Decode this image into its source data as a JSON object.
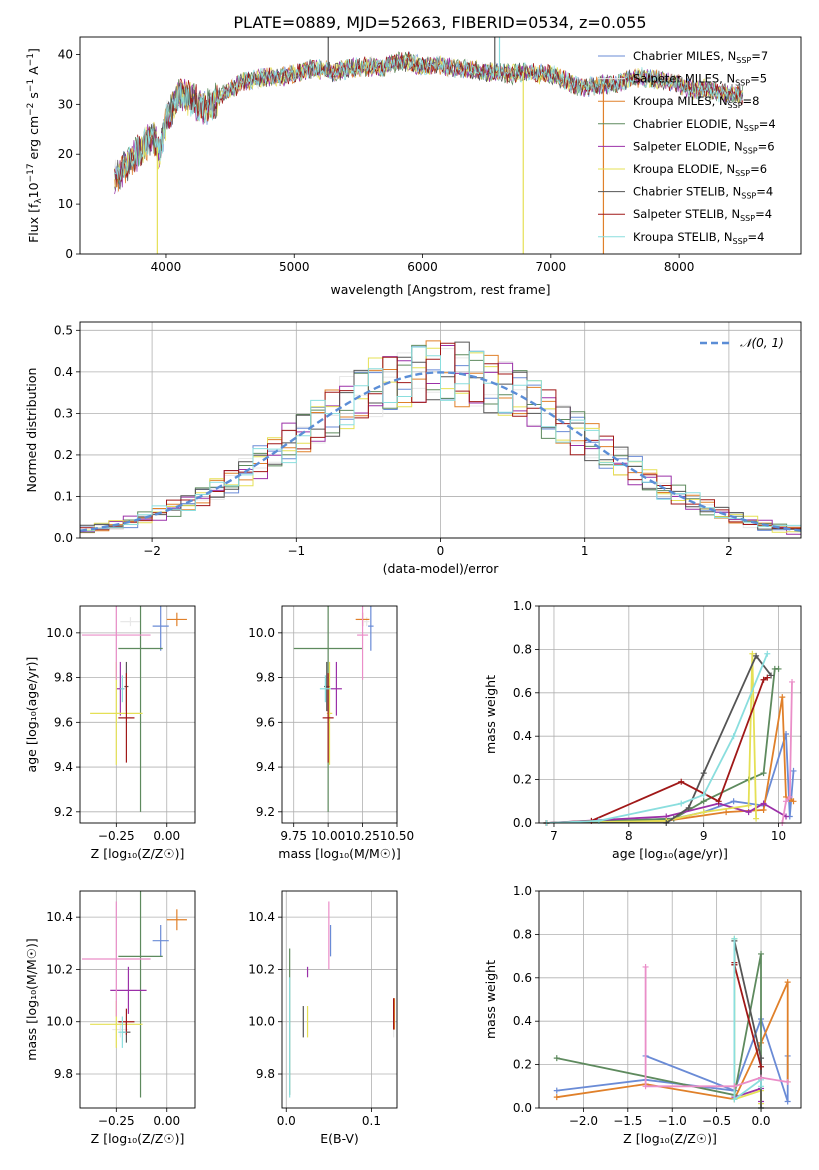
{
  "figure_title": "PLATE=0889, MJD=52663, FIBERID=0534, z=0.055",
  "series_styles": [
    {
      "name_base": "Chabrier MILES",
      "nssp": "7",
      "color": "#6a8bd6"
    },
    {
      "name_base": "Salpeter MILES",
      "nssp": "5",
      "color": "#e8e8e8"
    },
    {
      "name_base": "Kroupa MILES",
      "nssp": "8",
      "color": "#e0802a"
    },
    {
      "name_base": "Chabrier ELODIE",
      "nssp": "4",
      "color": "#5e8a5e"
    },
    {
      "name_base": "Salpeter ELODIE",
      "nssp": "6",
      "color": "#9b30a8"
    },
    {
      "name_base": "Kroupa ELODIE",
      "nssp": "6",
      "color": "#e5e055"
    },
    {
      "name_base": "Chabrier STELIB",
      "nssp": "4",
      "color": "#555555"
    },
    {
      "name_base": "Salpeter STELIB",
      "nssp": "4",
      "color": "#a01818"
    },
    {
      "name_base": "Kroupa STELIB",
      "nssp": "4",
      "color": "#8adede"
    }
  ],
  "chart_data": [
    {
      "id": "spectrum",
      "type": "line",
      "xlabel": "wavelength [Angstrom, rest frame]",
      "ylabel": "Flux [f_λ10^-17 erg cm^-2 s^-1 A^-1]",
      "xlim": [
        3330,
        8950
      ],
      "ylim": [
        0,
        43.5
      ],
      "xticks": [
        4000,
        5000,
        6000,
        7000,
        8000
      ],
      "yticks": [
        0,
        10,
        20,
        30,
        40
      ],
      "grid": false,
      "legend": "top-right",
      "continuum": {
        "x": [
          3600,
          3700,
          3800,
          3900,
          3950,
          4000,
          4100,
          4200,
          4300,
          4400,
          4500,
          4600,
          4700,
          4800,
          4900,
          5000,
          5100,
          5200,
          5300,
          5400,
          5500,
          5600,
          5700,
          5800,
          5900,
          6000,
          6100,
          6200,
          6300,
          6400,
          6500,
          6600,
          6700,
          6800,
          6900,
          7000,
          7100,
          7200,
          7300,
          7400,
          7500,
          7600,
          7700,
          7800,
          7900,
          8000,
          8100,
          8200,
          8300,
          8400,
          8500
        ],
        "y": [
          15,
          18,
          21,
          24,
          20,
          27,
          32,
          31,
          29,
          31,
          33,
          34.5,
          35,
          35.5,
          35.5,
          36,
          37,
          37,
          36.5,
          37,
          37.5,
          37.5,
          37.5,
          38.5,
          38.5,
          37.5,
          38,
          37.5,
          37,
          37,
          36.5,
          36.5,
          36,
          36.5,
          36,
          36,
          35,
          33.5,
          33.5,
          34,
          34,
          35,
          35.5,
          35,
          34.5,
          34,
          33,
          33,
          32.5,
          32,
          32
        ]
      },
      "spikes": [
        {
          "x": 3933,
          "y": 0,
          "color": "#e5e055"
        },
        {
          "x": 6785,
          "y": 0,
          "color": "#e5e055"
        },
        {
          "x": 7410,
          "y": 0,
          "color": "#e0802a"
        },
        {
          "x": 5265,
          "y": 45,
          "color": "#555555"
        },
        {
          "x": 6563,
          "y": 45,
          "color": "#555555"
        },
        {
          "x": 6600,
          "y": 45,
          "color": "#8adede"
        }
      ]
    },
    {
      "id": "residuals",
      "type": "area",
      "xlabel": "(data-model)/error",
      "ylabel": "Normed distribution",
      "xlim": [
        -2.5,
        2.5
      ],
      "ylim": [
        0,
        0.52
      ],
      "xticks": [
        -2,
        -1,
        0,
        1,
        2
      ],
      "yticks": [
        0.0,
        0.1,
        0.2,
        0.3,
        0.4,
        0.5
      ],
      "grid": true,
      "legend": "top-right",
      "gaussian_label": "𝒩(0, 1)",
      "bin_width": 0.1,
      "bin_start": -2.5
    },
    {
      "id": "age_vs_Z",
      "type": "scatter",
      "xlabel": "Z [log₁₀(Z/Z☉)]",
      "ylabel": "age  [log₁₀(age/yr)]",
      "xlim": [
        -0.43,
        0.14
      ],
      "ylim": [
        9.15,
        10.12
      ],
      "xticks": [
        -0.25,
        0.0
      ],
      "yticks": [
        9.2,
        9.4,
        9.6,
        9.8,
        10.0
      ],
      "grid": true,
      "points": [
        {
          "x": -0.03,
          "y": 10.03,
          "xe": 0.04,
          "ye": 0.11
        },
        {
          "x": -0.18,
          "y": 10.05,
          "xe": 0.05,
          "ye": 0.02
        },
        {
          "x": 0.05,
          "y": 10.06,
          "xe": 0.05,
          "ye": 0.03
        },
        {
          "x": -0.13,
          "y": 9.93,
          "xe": 0.11,
          "ye": 0.73
        },
        {
          "x": -0.23,
          "y": 9.75,
          "xe": 0.02,
          "ye": 0.12
        },
        {
          "x": -0.25,
          "y": 9.64,
          "xe": 0.13,
          "ye": 0.23
        },
        {
          "x": -0.2,
          "y": 9.76,
          "xe": 0.01,
          "ye": 0.11
        },
        {
          "x": -0.2,
          "y": 9.62,
          "xe": 0.04,
          "ye": 0.2
        },
        {
          "x": -0.22,
          "y": 9.75,
          "xe": 0.01,
          "ye": 0.06
        },
        {
          "x": -0.25,
          "y": 9.99,
          "xe": 0.17,
          "ye": 0.2
        }
      ]
    },
    {
      "id": "age_vs_mass",
      "type": "scatter",
      "xlabel": "mass [log₁₀(M/M☉)]",
      "ylabel": "",
      "xlim": [
        9.665,
        10.5
      ],
      "ylim": [
        9.15,
        10.12
      ],
      "xticks": [
        9.75,
        10.0,
        10.25,
        10.5
      ],
      "yticks": [
        9.2,
        9.4,
        9.6,
        9.8,
        10.0
      ],
      "grid": true,
      "points": [
        {
          "x": 10.31,
          "y": 10.03,
          "xe": 0.02,
          "ye": 0.11
        },
        {
          "x": 10.28,
          "y": 10.05,
          "xe": 0.02,
          "ye": 0.02
        },
        {
          "x": 10.25,
          "y": 10.06,
          "xe": 0.05,
          "ye": 0.03
        },
        {
          "x": 10.0,
          "y": 9.93,
          "xe": 0.25,
          "ye": 0.73
        },
        {
          "x": 10.06,
          "y": 9.75,
          "xe": 0.04,
          "ye": 0.12
        },
        {
          "x": 10.01,
          "y": 9.64,
          "xe": 0.02,
          "ye": 0.23
        },
        {
          "x": 9.99,
          "y": 9.76,
          "xe": 0.02,
          "ye": 0.11
        },
        {
          "x": 10.0,
          "y": 9.62,
          "xe": 0.04,
          "ye": 0.2
        },
        {
          "x": 9.98,
          "y": 9.75,
          "xe": 0.04,
          "ye": 0.06
        },
        {
          "x": 10.25,
          "y": 9.99,
          "xe": 0.04,
          "ye": 0.2
        }
      ]
    },
    {
      "id": "weight_vs_age",
      "type": "line",
      "xlabel": "age  [log₁₀(age/yr)]",
      "ylabel": "mass weight",
      "xlim": [
        6.8,
        10.3
      ],
      "ylim": [
        0,
        1
      ],
      "xticks": [
        7,
        8,
        9,
        10
      ],
      "yticks": [
        0.0,
        0.2,
        0.4,
        0.6,
        0.8,
        1.0
      ],
      "grid": true,
      "series": [
        {
          "color": "#6a8bd6",
          "x": [
            6.9,
            8.6,
            9.0,
            9.4,
            9.8,
            10.1,
            10.15,
            10.2
          ],
          "y": [
            0.0,
            0.02,
            0.05,
            0.1,
            0.08,
            0.41,
            0.03,
            0.24
          ]
        },
        {
          "color": "#e0802a",
          "x": [
            6.9,
            8.5,
            9.3,
            9.8,
            10.05,
            10.1,
            10.15,
            10.2
          ],
          "y": [
            0.0,
            0.01,
            0.05,
            0.06,
            0.58,
            0.12,
            0.11,
            0.1
          ]
        },
        {
          "color": "#5e8a5e",
          "x": [
            6.9,
            8.6,
            9.0,
            9.6,
            9.8,
            9.95,
            10.0
          ],
          "y": [
            0.0,
            0.02,
            0.1,
            0.2,
            0.23,
            0.71,
            0.71
          ]
        },
        {
          "color": "#9b30a8",
          "x": [
            6.9,
            8.5,
            9.2,
            9.6,
            9.8,
            10.1
          ],
          "y": [
            0.0,
            0.03,
            0.09,
            0.05,
            0.09,
            0.03
          ]
        },
        {
          "color": "#e5e055",
          "x": [
            6.9,
            8.5,
            9.0,
            9.6,
            9.65,
            9.7
          ],
          "y": [
            0.0,
            0.01,
            0.05,
            0.08,
            0.78,
            0.02
          ]
        },
        {
          "color": "#555555",
          "x": [
            6.9,
            8.5,
            8.8,
            9.0,
            9.7,
            9.9
          ],
          "y": [
            0.0,
            0.0,
            0.07,
            0.23,
            0.77,
            0.68
          ]
        },
        {
          "color": "#a01818",
          "x": [
            6.9,
            7.5,
            8.7,
            9.2,
            9.8,
            9.85
          ],
          "y": [
            0.0,
            0.01,
            0.19,
            0.1,
            0.66,
            0.67
          ]
        },
        {
          "color": "#8adede",
          "x": [
            6.9,
            7.6,
            8.7,
            9.0,
            9.4,
            9.85
          ],
          "y": [
            0.0,
            0.01,
            0.09,
            0.13,
            0.4,
            0.78
          ]
        },
        {
          "color": "#ea8ec8",
          "x": [
            10.05,
            10.1,
            10.15,
            10.18
          ],
          "y": [
            0.0,
            0.1,
            0.12,
            0.65
          ]
        }
      ]
    },
    {
      "id": "mass_vs_Z",
      "type": "scatter",
      "xlabel": "Z [log₁₀(Z/Z☉)]",
      "ylabel": "mass [log₁₀(M/M☉)]",
      "xlim": [
        -0.43,
        0.14
      ],
      "ylim": [
        9.67,
        10.5
      ],
      "xticks": [
        -0.25,
        0.0
      ],
      "yticks": [
        9.8,
        10.0,
        10.2,
        10.4
      ],
      "grid": true,
      "points": [
        {
          "x": -0.03,
          "y": 10.31,
          "xe": 0.04,
          "ye": 0.06
        },
        {
          "x": -0.23,
          "y": 9.97,
          "xe": 0.04,
          "ye": 0.03
        },
        {
          "x": 0.05,
          "y": 10.39,
          "xe": 0.05,
          "ye": 0.04
        },
        {
          "x": -0.13,
          "y": 10.25,
          "xe": 0.11,
          "ye": 0.54
        },
        {
          "x": -0.19,
          "y": 10.12,
          "xe": 0.09,
          "ye": 0.09
        },
        {
          "x": -0.25,
          "y": 9.99,
          "xe": 0.13,
          "ye": 0.09
        },
        {
          "x": -0.2,
          "y": 9.96,
          "xe": 0.02,
          "ye": 0.04
        },
        {
          "x": -0.2,
          "y": 10.0,
          "xe": 0.04,
          "ye": 0.05
        },
        {
          "x": -0.22,
          "y": 9.96,
          "xe": 0.02,
          "ye": 0.06
        },
        {
          "x": -0.25,
          "y": 10.24,
          "xe": 0.17,
          "ye": 0.22
        }
      ]
    },
    {
      "id": "mass_vs_ebv",
      "type": "scatter",
      "xlabel": "E(B-V)",
      "ylabel": "",
      "xlim": [
        -0.005,
        0.13
      ],
      "ylim": [
        9.67,
        10.5
      ],
      "xticks": [
        0.0,
        0.1
      ],
      "yticks": [
        9.8,
        10.0,
        10.2,
        10.4
      ],
      "grid": true,
      "points": [
        {
          "x": 0.052,
          "y": 10.31,
          "xe": 0,
          "ye": 0.06
        },
        {
          "x": 0.126,
          "y": 9.97,
          "xe": 0,
          "ye": 0.03
        },
        {
          "x": 0.127,
          "y": 10.03,
          "xe": 0,
          "ye": 0.06
        },
        {
          "x": 0.004,
          "y": 10.0,
          "xe": 0,
          "ye": 0.28
        },
        {
          "x": 0.025,
          "y": 10.19,
          "xe": 0,
          "ye": 0.02
        },
        {
          "x": 0.025,
          "y": 10.0,
          "xe": 0,
          "ye": 0.06
        },
        {
          "x": 0.02,
          "y": 10.0,
          "xe": 0,
          "ye": 0.06
        },
        {
          "x": 0.126,
          "y": 10.03,
          "xe": 0,
          "ye": 0.06
        },
        {
          "x": 0.004,
          "y": 9.94,
          "xe": 0,
          "ye": 0.23
        },
        {
          "x": 0.05,
          "y": 10.33,
          "xe": 0,
          "ye": 0.13
        }
      ]
    },
    {
      "id": "weight_vs_Z",
      "type": "line",
      "xlabel": "Z [log₁₀(Z/Z☉)]",
      "ylabel": "mass weight",
      "xlim": [
        -2.5,
        0.45
      ],
      "ylim": [
        0,
        1
      ],
      "xticks": [
        -2.0,
        -1.5,
        -1.0,
        -0.5,
        0.0
      ],
      "yticks": [
        0.0,
        0.2,
        0.4,
        0.6,
        0.8,
        1.0
      ],
      "grid": true,
      "series": [
        {
          "color": "#6a8bd6",
          "x": [
            -2.3,
            -1.3,
            -0.3,
            0.0,
            0.3,
            0.3
          ],
          "y": [
            0.08,
            0.13,
            0.08,
            0.41,
            0.03,
            0.24
          ]
        },
        {
          "color": "#6a8bd6",
          "x": [
            -1.3,
            -0.3
          ],
          "y": [
            0.24,
            0.08
          ]
        },
        {
          "color": "#e0802a",
          "x": [
            -2.3,
            -1.3,
            -0.3,
            0.0,
            0.3,
            0.3
          ],
          "y": [
            0.05,
            0.11,
            0.04,
            0.3,
            0.58,
            0.12
          ]
        },
        {
          "color": "#5e8a5e",
          "x": [
            -2.3,
            -0.3,
            0.0,
            0.0
          ],
          "y": [
            0.23,
            0.06,
            0.71,
            0.0
          ]
        },
        {
          "color": "#9b30a8",
          "x": [
            -0.3,
            0.0,
            0.0
          ],
          "y": [
            0.05,
            0.09,
            0.03
          ]
        },
        {
          "color": "#e5e055",
          "x": [
            -0.3,
            -0.3,
            0.0,
            0.0
          ],
          "y": [
            0.78,
            0.04,
            0.08,
            0.02
          ]
        },
        {
          "color": "#555555",
          "x": [
            -0.3,
            -0.3,
            0.0,
            0.0
          ],
          "y": [
            0.66,
            0.77,
            0.23,
            0.0
          ]
        },
        {
          "color": "#a01818",
          "x": [
            -0.3,
            -0.3,
            0.0
          ],
          "y": [
            0.67,
            0.66,
            0.19
          ]
        },
        {
          "color": "#8adede",
          "x": [
            -0.3,
            -0.3,
            0.0,
            0.0
          ],
          "y": [
            0.78,
            0.04,
            0.13,
            0.1
          ]
        },
        {
          "color": "#ea8ec8",
          "x": [
            -1.3,
            -1.3,
            -0.3,
            0.0,
            0.3
          ],
          "y": [
            0.65,
            0.1,
            0.1,
            0.14,
            0.12
          ]
        }
      ]
    }
  ]
}
